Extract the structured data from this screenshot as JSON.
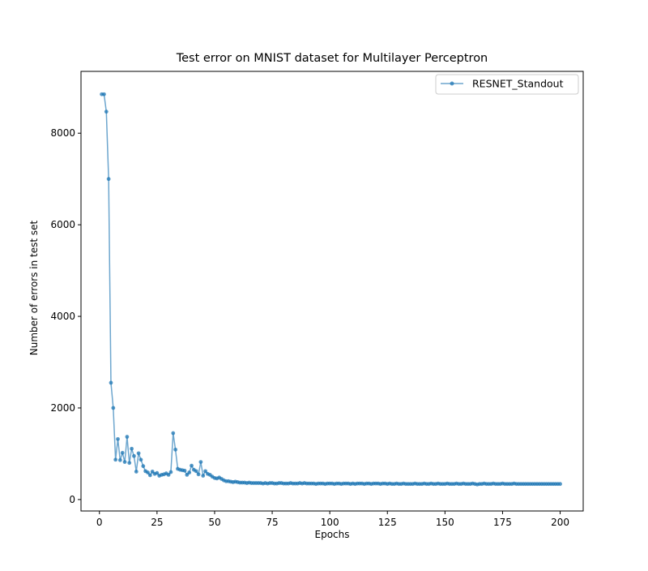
{
  "chart_data": {
    "type": "line",
    "title": "Test error on MNIST dataset for Multilayer Perceptron",
    "xlabel": "Epochs",
    "ylabel": "Number of errors in test set",
    "xlim": [
      -8,
      210
    ],
    "ylim": [
      -250,
      9350
    ],
    "xticks": [
      0,
      25,
      50,
      75,
      100,
      125,
      150,
      175,
      200
    ],
    "xtick_labels": [
      "0",
      "25",
      "50",
      "75",
      "100",
      "125",
      "150",
      "175",
      "200"
    ],
    "yticks": [
      0,
      2000,
      4000,
      6000,
      8000
    ],
    "ytick_labels": [
      "0",
      "2000",
      "4000",
      "6000",
      "8000"
    ],
    "grid": false,
    "legend_position": "top-right",
    "colors": {
      "series": "#1f77b4"
    },
    "series": [
      {
        "name": "RESNET_Standout",
        "color": "#1f77b4",
        "marker": "circle",
        "x": [
          1,
          2,
          3,
          4,
          5,
          6,
          7,
          8,
          9,
          10,
          11,
          12,
          13,
          14,
          15,
          16,
          17,
          18,
          19,
          20,
          21,
          22,
          23,
          24,
          25,
          26,
          27,
          28,
          29,
          30,
          31,
          32,
          33,
          34,
          35,
          36,
          37,
          38,
          39,
          40,
          41,
          42,
          43,
          44,
          45,
          46,
          47,
          48,
          49,
          50,
          51,
          52,
          53,
          54,
          55,
          56,
          57,
          58,
          59,
          60,
          61,
          62,
          63,
          64,
          65,
          66,
          67,
          68,
          69,
          70,
          71,
          72,
          73,
          74,
          75,
          76,
          77,
          78,
          79,
          80,
          81,
          82,
          83,
          84,
          85,
          86,
          87,
          88,
          89,
          90,
          91,
          92,
          93,
          94,
          95,
          96,
          97,
          98,
          99,
          100,
          101,
          102,
          103,
          104,
          105,
          106,
          107,
          108,
          109,
          110,
          111,
          112,
          113,
          114,
          115,
          116,
          117,
          118,
          119,
          120,
          121,
          122,
          123,
          124,
          125,
          126,
          127,
          128,
          129,
          130,
          131,
          132,
          133,
          134,
          135,
          136,
          137,
          138,
          139,
          140,
          141,
          142,
          143,
          144,
          145,
          146,
          147,
          148,
          149,
          150,
          151,
          152,
          153,
          154,
          155,
          156,
          157,
          158,
          159,
          160,
          161,
          162,
          163,
          164,
          165,
          166,
          167,
          168,
          169,
          170,
          171,
          172,
          173,
          174,
          175,
          176,
          177,
          178,
          179,
          180,
          181,
          182,
          183,
          184,
          185,
          186,
          187,
          188,
          189,
          190,
          191,
          192,
          193,
          194,
          195,
          196,
          197,
          198,
          199,
          200
        ],
        "values": [
          8850,
          8850,
          8470,
          7000,
          2550,
          2000,
          870,
          1320,
          860,
          1020,
          820,
          1370,
          800,
          1110,
          950,
          610,
          1010,
          870,
          730,
          620,
          590,
          530,
          610,
          560,
          580,
          520,
          540,
          550,
          570,
          540,
          600,
          1450,
          1090,
          670,
          650,
          640,
          630,
          540,
          590,
          740,
          650,
          620,
          550,
          820,
          520,
          620,
          560,
          540,
          500,
          470,
          460,
          480,
          450,
          420,
          400,
          400,
          390,
          380,
          390,
          380,
          370,
          370,
          370,
          360,
          370,
          360,
          360,
          360,
          360,
          360,
          350,
          360,
          350,
          360,
          360,
          350,
          350,
          360,
          360,
          350,
          350,
          350,
          360,
          350,
          350,
          350,
          360,
          350,
          360,
          350,
          350,
          350,
          350,
          340,
          350,
          350,
          350,
          340,
          350,
          350,
          350,
          340,
          350,
          350,
          340,
          350,
          350,
          350,
          340,
          350,
          340,
          350,
          350,
          350,
          340,
          350,
          350,
          340,
          350,
          350,
          350,
          340,
          350,
          350,
          340,
          350,
          340,
          340,
          350,
          340,
          340,
          350,
          340,
          340,
          340,
          340,
          350,
          340,
          340,
          340,
          350,
          340,
          340,
          350,
          340,
          340,
          350,
          340,
          340,
          340,
          350,
          340,
          340,
          340,
          350,
          340,
          340,
          350,
          340,
          340,
          340,
          350,
          340,
          330,
          340,
          340,
          350,
          340,
          340,
          340,
          350,
          340,
          340,
          340,
          350,
          340,
          340,
          340,
          340,
          350,
          340,
          340,
          340,
          340,
          340,
          340,
          340,
          340,
          340,
          340,
          340,
          340,
          340,
          340,
          340,
          340,
          340,
          340,
          340,
          340
        ]
      }
    ]
  }
}
